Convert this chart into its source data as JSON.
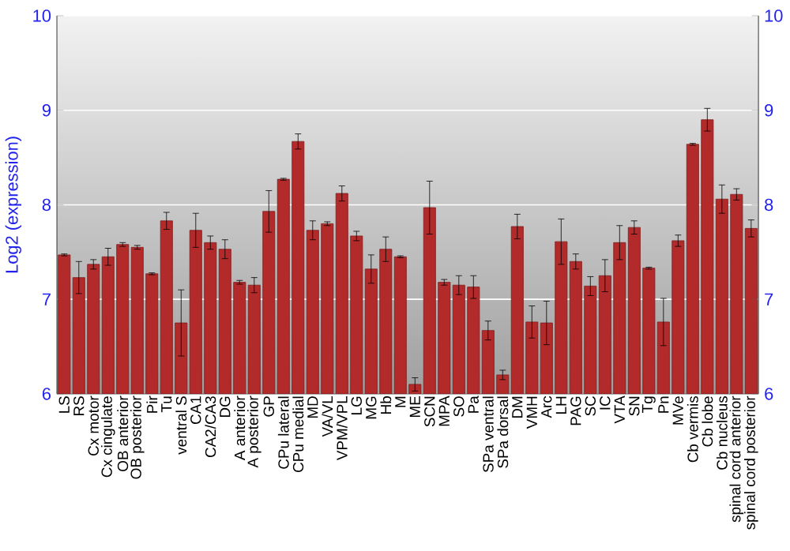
{
  "chart_data": {
    "type": "bar",
    "ylabel": "Log2 (expression)",
    "categories": [
      "LS",
      "RS",
      "Cx motor",
      "Cx cingulate",
      "OB anterior",
      "OB posterior",
      "Pir",
      "Tu",
      "ventral S",
      "CA1",
      "CA2/CA3",
      "DG",
      "A anterior",
      "A posterior",
      "GP",
      "CPu lateral",
      "CPu medial",
      "MD",
      "VA/VL",
      "VPM/VPL",
      "LG",
      "MG",
      "Hb",
      "M",
      "ME",
      "SCN",
      "MPA",
      "SO",
      "Pa",
      "SPa ventral",
      "SPa dorsal",
      "DM",
      "VMH",
      "Arc",
      "LH",
      "PAG",
      "SC",
      "IC",
      "VTA",
      "SN",
      "Tg",
      "Pn",
      "MVe",
      "Cb vermis",
      "Cb lobe",
      "Cb nucleus",
      "spinal cord anterior",
      "spinal cord posterior"
    ],
    "values": [
      7.47,
      7.23,
      7.37,
      7.45,
      7.58,
      7.55,
      7.27,
      7.83,
      6.75,
      7.73,
      7.6,
      7.53,
      7.18,
      7.15,
      7.93,
      8.27,
      8.67,
      7.73,
      7.8,
      8.12,
      7.67,
      7.32,
      7.53,
      7.45,
      6.1,
      7.97,
      7.18,
      7.15,
      7.13,
      6.67,
      6.2,
      7.77,
      6.76,
      6.75,
      7.61,
      7.4,
      7.14,
      7.25,
      7.6,
      7.76,
      7.33,
      6.76,
      7.62,
      8.64,
      8.9,
      8.06,
      8.11,
      7.75
    ],
    "errors": [
      0.01,
      0.17,
      0.05,
      0.09,
      0.02,
      0.02,
      0.01,
      0.09,
      0.35,
      0.18,
      0.07,
      0.1,
      0.02,
      0.08,
      0.22,
      0.01,
      0.08,
      0.1,
      0.02,
      0.08,
      0.05,
      0.15,
      0.13,
      0.01,
      0.07,
      0.28,
      0.03,
      0.1,
      0.12,
      0.1,
      0.05,
      0.13,
      0.17,
      0.23,
      0.24,
      0.08,
      0.1,
      0.17,
      0.18,
      0.07,
      0.01,
      0.25,
      0.06,
      0.01,
      0.12,
      0.15,
      0.06,
      0.09
    ],
    "color": "#b22a2a",
    "ylim": [
      6,
      10
    ],
    "yticks": [
      6,
      7,
      8,
      9,
      10
    ],
    "y2lim": [
      6,
      10
    ],
    "y2ticks": [
      6,
      7,
      8,
      9,
      10
    ],
    "grid": "y"
  }
}
